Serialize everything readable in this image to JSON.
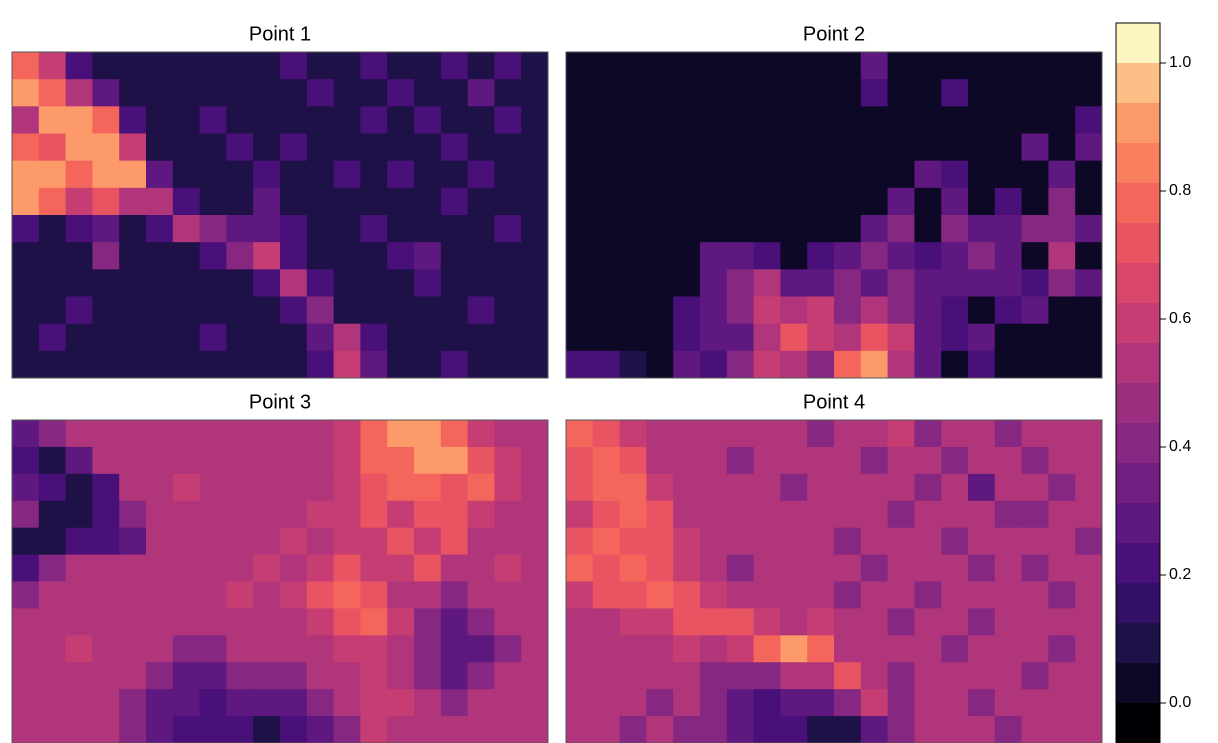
{
  "chart_data": {
    "type": "heatmap",
    "panels": [
      {
        "title": "Point 1",
        "values": [
          [
            0.8,
            0.6,
            0.2,
            0.1,
            0.1,
            0.1,
            0.1,
            0.1,
            0.1,
            0.1,
            0.2,
            0.1,
            0.1,
            0.2,
            0.1,
            0.1,
            0.2,
            0.1,
            0.2,
            0.1
          ],
          [
            0.9,
            0.8,
            0.5,
            0.3,
            0.1,
            0.1,
            0.1,
            0.1,
            0.1,
            0.1,
            0.1,
            0.2,
            0.1,
            0.1,
            0.2,
            0.1,
            0.1,
            0.3,
            0.1,
            0.1
          ],
          [
            0.5,
            0.9,
            0.9,
            0.8,
            0.2,
            0.1,
            0.1,
            0.2,
            0.1,
            0.1,
            0.1,
            0.1,
            0.1,
            0.2,
            0.1,
            0.2,
            0.1,
            0.1,
            0.2,
            0.1
          ],
          [
            0.8,
            0.7,
            0.9,
            0.9,
            0.6,
            0.1,
            0.1,
            0.1,
            0.2,
            0.1,
            0.2,
            0.1,
            0.1,
            0.1,
            0.1,
            0.1,
            0.2,
            0.1,
            0.1,
            0.1
          ],
          [
            0.9,
            0.9,
            0.8,
            0.9,
            0.9,
            0.3,
            0.1,
            0.1,
            0.1,
            0.2,
            0.1,
            0.1,
            0.2,
            0.1,
            0.2,
            0.1,
            0.1,
            0.2,
            0.1,
            0.1
          ],
          [
            0.9,
            0.8,
            0.6,
            0.7,
            0.5,
            0.5,
            0.2,
            0.1,
            0.1,
            0.3,
            0.1,
            0.1,
            0.1,
            0.1,
            0.1,
            0.1,
            0.2,
            0.1,
            0.1,
            0.1
          ],
          [
            0.2,
            0.1,
            0.2,
            0.3,
            0.1,
            0.2,
            0.5,
            0.4,
            0.3,
            0.3,
            0.2,
            0.1,
            0.1,
            0.2,
            0.1,
            0.1,
            0.1,
            0.1,
            0.2,
            0.1
          ],
          [
            0.1,
            0.1,
            0.1,
            0.4,
            0.1,
            0.1,
            0.1,
            0.2,
            0.4,
            0.6,
            0.2,
            0.1,
            0.1,
            0.1,
            0.2,
            0.3,
            0.1,
            0.1,
            0.1,
            0.1
          ],
          [
            0.1,
            0.1,
            0.1,
            0.1,
            0.1,
            0.1,
            0.1,
            0.1,
            0.1,
            0.2,
            0.5,
            0.2,
            0.1,
            0.1,
            0.1,
            0.2,
            0.1,
            0.1,
            0.1,
            0.1
          ],
          [
            0.1,
            0.1,
            0.2,
            0.1,
            0.1,
            0.1,
            0.1,
            0.1,
            0.1,
            0.1,
            0.2,
            0.4,
            0.1,
            0.1,
            0.1,
            0.1,
            0.1,
            0.2,
            0.1,
            0.1
          ],
          [
            0.1,
            0.2,
            0.1,
            0.1,
            0.1,
            0.1,
            0.1,
            0.2,
            0.1,
            0.1,
            0.1,
            0.3,
            0.5,
            0.2,
            0.1,
            0.1,
            0.1,
            0.1,
            0.1,
            0.1
          ],
          [
            0.1,
            0.1,
            0.1,
            0.1,
            0.1,
            0.1,
            0.1,
            0.1,
            0.1,
            0.1,
            0.1,
            0.2,
            0.6,
            0.3,
            0.1,
            0.1,
            0.2,
            0.1,
            0.1,
            0.1
          ]
        ]
      },
      {
        "title": "Point 2",
        "values": [
          [
            0.05,
            0.05,
            0.05,
            0.05,
            0.05,
            0.05,
            0.05,
            0.05,
            0.05,
            0.05,
            0.05,
            0.3,
            0.05,
            0.05,
            0.05,
            0.05,
            0.05,
            0.05,
            0.05,
            0.05
          ],
          [
            0.05,
            0.05,
            0.05,
            0.05,
            0.05,
            0.05,
            0.05,
            0.05,
            0.05,
            0.05,
            0.05,
            0.2,
            0.05,
            0.05,
            0.2,
            0.05,
            0.05,
            0.05,
            0.05,
            0.05
          ],
          [
            0.05,
            0.05,
            0.05,
            0.05,
            0.05,
            0.05,
            0.05,
            0.05,
            0.05,
            0.05,
            0.05,
            0.05,
            0.05,
            0.05,
            0.05,
            0.05,
            0.05,
            0.05,
            0.05,
            0.2
          ],
          [
            0.05,
            0.05,
            0.05,
            0.05,
            0.05,
            0.05,
            0.05,
            0.05,
            0.05,
            0.05,
            0.05,
            0.05,
            0.05,
            0.05,
            0.05,
            0.05,
            0.05,
            0.3,
            0.05,
            0.3
          ],
          [
            0.05,
            0.05,
            0.05,
            0.05,
            0.05,
            0.05,
            0.05,
            0.05,
            0.05,
            0.05,
            0.05,
            0.05,
            0.05,
            0.3,
            0.2,
            0.05,
            0.05,
            0.05,
            0.3,
            0.05
          ],
          [
            0.05,
            0.05,
            0.05,
            0.05,
            0.05,
            0.05,
            0.05,
            0.05,
            0.05,
            0.05,
            0.05,
            0.05,
            0.3,
            0.05,
            0.3,
            0.05,
            0.2,
            0.05,
            0.4,
            0.05
          ],
          [
            0.05,
            0.05,
            0.05,
            0.05,
            0.05,
            0.05,
            0.05,
            0.05,
            0.05,
            0.05,
            0.05,
            0.3,
            0.4,
            0.05,
            0.4,
            0.3,
            0.3,
            0.4,
            0.4,
            0.3
          ],
          [
            0.05,
            0.05,
            0.05,
            0.05,
            0.05,
            0.3,
            0.3,
            0.2,
            0.05,
            0.2,
            0.3,
            0.4,
            0.3,
            0.2,
            0.3,
            0.4,
            0.3,
            0.05,
            0.5,
            0.05
          ],
          [
            0.05,
            0.05,
            0.05,
            0.05,
            0.05,
            0.3,
            0.4,
            0.5,
            0.3,
            0.3,
            0.4,
            0.3,
            0.4,
            0.3,
            0.3,
            0.3,
            0.3,
            0.2,
            0.4,
            0.3
          ],
          [
            0.05,
            0.05,
            0.05,
            0.05,
            0.2,
            0.3,
            0.4,
            0.6,
            0.5,
            0.6,
            0.4,
            0.5,
            0.4,
            0.3,
            0.2,
            0.05,
            0.2,
            0.3,
            0.05,
            0.05
          ],
          [
            0.05,
            0.05,
            0.05,
            0.05,
            0.2,
            0.3,
            0.3,
            0.5,
            0.7,
            0.6,
            0.5,
            0.7,
            0.6,
            0.3,
            0.2,
            0.3,
            0.05,
            0.05,
            0.05,
            0.05
          ],
          [
            0.2,
            0.2,
            0.1,
            0.05,
            0.3,
            0.2,
            0.4,
            0.6,
            0.5,
            0.4,
            0.8,
            0.9,
            0.5,
            0.3,
            0.05,
            0.2,
            0.05,
            0.05,
            0.05,
            0.05
          ]
        ]
      },
      {
        "title": "Point 3",
        "values": [
          [
            0.3,
            0.4,
            0.5,
            0.5,
            0.5,
            0.5,
            0.5,
            0.5,
            0.5,
            0.5,
            0.5,
            0.5,
            0.6,
            0.8,
            0.9,
            0.9,
            0.8,
            0.6,
            0.5,
            0.5
          ],
          [
            0.2,
            0.1,
            0.3,
            0.5,
            0.5,
            0.5,
            0.5,
            0.5,
            0.5,
            0.5,
            0.5,
            0.5,
            0.6,
            0.8,
            0.8,
            0.9,
            0.9,
            0.7,
            0.6,
            0.5
          ],
          [
            0.3,
            0.2,
            0.1,
            0.2,
            0.5,
            0.5,
            0.6,
            0.5,
            0.5,
            0.5,
            0.5,
            0.5,
            0.6,
            0.7,
            0.8,
            0.8,
            0.7,
            0.8,
            0.6,
            0.5
          ],
          [
            0.4,
            0.1,
            0.1,
            0.2,
            0.4,
            0.5,
            0.5,
            0.5,
            0.5,
            0.5,
            0.5,
            0.6,
            0.6,
            0.7,
            0.6,
            0.7,
            0.7,
            0.6,
            0.5,
            0.5
          ],
          [
            0.1,
            0.1,
            0.2,
            0.2,
            0.3,
            0.5,
            0.5,
            0.5,
            0.5,
            0.5,
            0.6,
            0.5,
            0.6,
            0.6,
            0.7,
            0.6,
            0.7,
            0.5,
            0.5,
            0.5
          ],
          [
            0.2,
            0.4,
            0.5,
            0.5,
            0.5,
            0.5,
            0.5,
            0.5,
            0.5,
            0.6,
            0.5,
            0.6,
            0.7,
            0.6,
            0.6,
            0.7,
            0.5,
            0.5,
            0.6,
            0.5
          ],
          [
            0.4,
            0.5,
            0.5,
            0.5,
            0.5,
            0.5,
            0.5,
            0.5,
            0.6,
            0.5,
            0.6,
            0.7,
            0.8,
            0.7,
            0.5,
            0.5,
            0.4,
            0.5,
            0.5,
            0.5
          ],
          [
            0.5,
            0.5,
            0.5,
            0.5,
            0.5,
            0.5,
            0.5,
            0.5,
            0.5,
            0.5,
            0.5,
            0.6,
            0.7,
            0.8,
            0.6,
            0.4,
            0.3,
            0.4,
            0.5,
            0.5
          ],
          [
            0.5,
            0.5,
            0.6,
            0.5,
            0.5,
            0.5,
            0.4,
            0.4,
            0.5,
            0.5,
            0.5,
            0.5,
            0.6,
            0.6,
            0.5,
            0.4,
            0.3,
            0.3,
            0.4,
            0.5
          ],
          [
            0.5,
            0.5,
            0.5,
            0.5,
            0.5,
            0.4,
            0.3,
            0.3,
            0.4,
            0.4,
            0.4,
            0.5,
            0.5,
            0.6,
            0.5,
            0.4,
            0.3,
            0.4,
            0.5,
            0.5
          ],
          [
            0.5,
            0.5,
            0.5,
            0.5,
            0.4,
            0.3,
            0.3,
            0.2,
            0.3,
            0.3,
            0.3,
            0.4,
            0.5,
            0.6,
            0.6,
            0.5,
            0.4,
            0.5,
            0.5,
            0.5
          ],
          [
            0.5,
            0.5,
            0.5,
            0.5,
            0.4,
            0.3,
            0.2,
            0.2,
            0.2,
            0.1,
            0.2,
            0.3,
            0.4,
            0.6,
            0.5,
            0.5,
            0.5,
            0.5,
            0.5,
            0.5
          ]
        ]
      },
      {
        "title": "Point 4",
        "values": [
          [
            0.8,
            0.7,
            0.6,
            0.5,
            0.5,
            0.5,
            0.5,
            0.5,
            0.5,
            0.4,
            0.5,
            0.5,
            0.6,
            0.4,
            0.5,
            0.5,
            0.4,
            0.5,
            0.5,
            0.5
          ],
          [
            0.7,
            0.8,
            0.7,
            0.5,
            0.5,
            0.5,
            0.4,
            0.5,
            0.5,
            0.5,
            0.5,
            0.4,
            0.5,
            0.5,
            0.4,
            0.5,
            0.5,
            0.4,
            0.5,
            0.5
          ],
          [
            0.7,
            0.8,
            0.8,
            0.6,
            0.5,
            0.5,
            0.5,
            0.5,
            0.4,
            0.5,
            0.5,
            0.5,
            0.5,
            0.4,
            0.5,
            0.3,
            0.5,
            0.5,
            0.4,
            0.5
          ],
          [
            0.6,
            0.7,
            0.8,
            0.7,
            0.5,
            0.5,
            0.5,
            0.5,
            0.5,
            0.5,
            0.5,
            0.5,
            0.4,
            0.5,
            0.5,
            0.5,
            0.4,
            0.4,
            0.5,
            0.5
          ],
          [
            0.7,
            0.8,
            0.7,
            0.7,
            0.6,
            0.5,
            0.5,
            0.5,
            0.5,
            0.5,
            0.4,
            0.5,
            0.5,
            0.5,
            0.4,
            0.5,
            0.5,
            0.5,
            0.5,
            0.4
          ],
          [
            0.8,
            0.7,
            0.8,
            0.7,
            0.6,
            0.5,
            0.4,
            0.5,
            0.5,
            0.5,
            0.5,
            0.4,
            0.5,
            0.5,
            0.5,
            0.4,
            0.5,
            0.4,
            0.5,
            0.5
          ],
          [
            0.6,
            0.7,
            0.7,
            0.8,
            0.7,
            0.6,
            0.5,
            0.5,
            0.5,
            0.5,
            0.4,
            0.5,
            0.5,
            0.4,
            0.5,
            0.5,
            0.5,
            0.5,
            0.4,
            0.5
          ],
          [
            0.5,
            0.5,
            0.6,
            0.6,
            0.7,
            0.7,
            0.7,
            0.6,
            0.5,
            0.6,
            0.5,
            0.5,
            0.4,
            0.5,
            0.5,
            0.4,
            0.5,
            0.5,
            0.5,
            0.5
          ],
          [
            0.5,
            0.5,
            0.5,
            0.5,
            0.6,
            0.5,
            0.6,
            0.8,
            0.9,
            0.8,
            0.5,
            0.5,
            0.5,
            0.5,
            0.4,
            0.5,
            0.5,
            0.5,
            0.4,
            0.5
          ],
          [
            0.5,
            0.5,
            0.5,
            0.5,
            0.5,
            0.4,
            0.4,
            0.4,
            0.5,
            0.5,
            0.7,
            0.5,
            0.4,
            0.5,
            0.5,
            0.5,
            0.5,
            0.4,
            0.5,
            0.5
          ],
          [
            0.5,
            0.5,
            0.5,
            0.4,
            0.5,
            0.4,
            0.3,
            0.2,
            0.3,
            0.3,
            0.4,
            0.6,
            0.4,
            0.5,
            0.5,
            0.4,
            0.5,
            0.5,
            0.5,
            0.5
          ],
          [
            0.5,
            0.5,
            0.4,
            0.5,
            0.4,
            0.4,
            0.3,
            0.2,
            0.2,
            0.1,
            0.1,
            0.3,
            0.4,
            0.5,
            0.5,
            0.5,
            0.4,
            0.5,
            0.5,
            0.5
          ]
        ]
      }
    ],
    "zlim": [
      -0.0625,
      1.0625
    ],
    "zticks": [
      {
        "value": 0,
        "label": "0.0"
      },
      {
        "value": 0.2,
        "label": "0.2"
      },
      {
        "value": 0.4,
        "label": "0.4"
      },
      {
        "value": 0.6,
        "label": "0.6"
      },
      {
        "value": 0.8,
        "label": "0.8"
      },
      {
        "value": 1,
        "label": "1.0"
      }
    ],
    "colors": [
      "#000004",
      "#0c0826",
      "#1d1147",
      "#331067",
      "#4a1079",
      "#5f187f",
      "#721f81",
      "#862781",
      "#9c2e7f",
      "#b1357b",
      "#c63d74",
      "#d8466b",
      "#e95462",
      "#f4665c",
      "#f97f5e",
      "#fc9a6a",
      "#fdbf85",
      "#fcf5c0"
    ]
  }
}
